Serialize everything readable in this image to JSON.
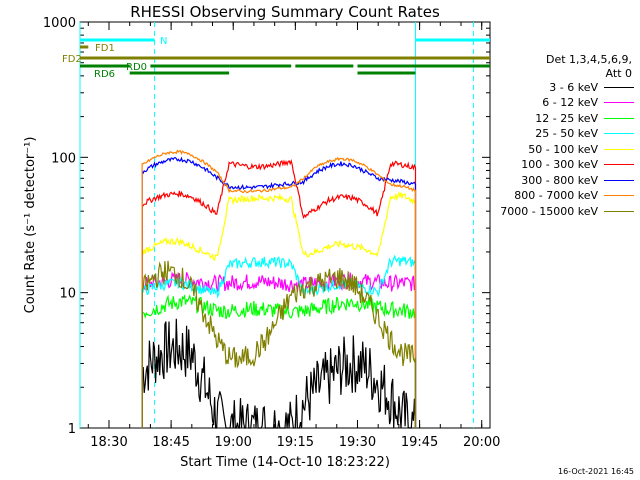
{
  "chart_data": {
    "type": "line",
    "title": "RHESSI Observing Summary Count Rates",
    "xlabel": "Start Time (14-Oct-10 18:23:22)",
    "ylabel": "Count Rate (s⁻¹ detector⁻¹)",
    "yscale": "log",
    "ylim": [
      1,
      1000
    ],
    "xlim": [
      "18:23",
      "20:02"
    ],
    "x_ticks": [
      "18:30",
      "18:45",
      "19:00",
      "19:15",
      "19:30",
      "19:45",
      "20:00"
    ],
    "y_ticks": [
      "1",
      "10",
      "100",
      "1000"
    ],
    "legend_title": [
      "Det 1,3,4,5,6,9,",
      "Att 0"
    ],
    "legend_position": "right",
    "x": [
      "18:38",
      "18:41",
      "18:44",
      "18:47",
      "18:50",
      "18:53",
      "18:56",
      "18:59",
      "19:02",
      "19:05",
      "19:08",
      "19:11",
      "19:14",
      "19:17",
      "19:20",
      "19:23",
      "19:26",
      "19:29",
      "19:32",
      "19:35",
      "19:38",
      "19:41",
      "19:44"
    ],
    "series": [
      {
        "name": "3 - 6 keV",
        "color": "#000000",
        "values": [
          2.6,
          3.3,
          3.8,
          3.9,
          3.5,
          2.1,
          1.2,
          1.0,
          1.0,
          1.0,
          1.0,
          1.0,
          1.0,
          1.5,
          1.9,
          2.3,
          2.8,
          3.0,
          2.8,
          2.2,
          1.7,
          1.2,
          1.0
        ]
      },
      {
        "name": "6 - 12 keV",
        "color": "#ff00ff",
        "values": [
          11.5,
          11.8,
          12.2,
          12.5,
          12.3,
          12.0,
          11.7,
          11.8,
          12.0,
          12.1,
          12.0,
          11.8,
          11.6,
          11.5,
          11.8,
          12.0,
          12.2,
          12.3,
          12.1,
          11.9,
          11.7,
          11.8,
          11.6
        ]
      },
      {
        "name": "12 - 25 keV",
        "color": "#00ff00",
        "values": [
          7.2,
          7.6,
          8.2,
          8.6,
          8.4,
          7.9,
          7.4,
          7.3,
          7.5,
          7.6,
          7.5,
          7.3,
          7.2,
          7.3,
          7.6,
          8.0,
          8.3,
          8.5,
          8.2,
          7.8,
          7.5,
          7.4,
          7.2
        ]
      },
      {
        "name": "25 - 50 keV",
        "color": "#00ffff",
        "values": [
          10.2,
          11.0,
          11.6,
          11.8,
          11.2,
          10.4,
          9.8,
          16.0,
          16.5,
          16.8,
          17.0,
          16.7,
          16.3,
          10.0,
          10.6,
          11.2,
          11.6,
          11.4,
          10.8,
          10.2,
          17.0,
          17.2,
          16.5
        ]
      },
      {
        "name": "50 - 100 keV",
        "color": "#ffff00",
        "values": [
          20,
          22,
          24,
          24,
          22,
          20,
          18,
          48,
          49,
          50,
          50,
          50,
          49,
          19,
          20,
          22,
          23,
          22,
          21,
          19,
          51,
          52,
          47
        ]
      },
      {
        "name": "100 - 300 keV",
        "color": "#ff0000",
        "values": [
          45,
          50,
          53,
          54,
          51,
          45,
          38,
          90,
          87,
          85,
          86,
          89,
          94,
          36,
          42,
          48,
          51,
          50,
          45,
          38,
          90,
          88,
          84
        ]
      },
      {
        "name": "300 - 800 keV",
        "color": "#0000ff",
        "values": [
          78,
          88,
          95,
          97,
          93,
          83,
          71,
          61,
          60,
          60,
          61,
          63,
          64,
          66,
          78,
          86,
          90,
          87,
          78,
          70,
          68,
          66,
          63
        ]
      },
      {
        "name": "800 - 7000 keV",
        "color": "#ff8000",
        "values": [
          88,
          100,
          108,
          110,
          104,
          92,
          78,
          57,
          56,
          56,
          57,
          59,
          60,
          70,
          85,
          93,
          98,
          95,
          86,
          74,
          63,
          61,
          57
        ]
      },
      {
        "name": "7000 - 15000 keV",
        "color": "#808000",
        "values": [
          10.5,
          13.0,
          14.5,
          13.5,
          10.5,
          7.0,
          4.5,
          3.3,
          3.2,
          3.5,
          4.5,
          6.5,
          9.5,
          11.0,
          11.5,
          12.5,
          13.0,
          11.5,
          9.0,
          6.5,
          4.5,
          3.5,
          3.3
        ]
      }
    ],
    "flags": [
      {
        "name": "N",
        "color": "#00ffff",
        "intervals": [
          [
            "18:23",
            "18:41"
          ],
          [
            "19:44",
            "20:02"
          ]
        ]
      },
      {
        "name": "FD1",
        "color": "#808000",
        "intervals": [
          [
            "18:23",
            "18:25"
          ]
        ]
      },
      {
        "name": "FD2",
        "color": "#808000",
        "intervals": [
          [
            "18:23",
            "20:02"
          ]
        ]
      },
      {
        "name": "RD0",
        "color": "#008000",
        "intervals": [
          [
            "18:23",
            "18:35"
          ],
          [
            "18:40",
            "18:59"
          ],
          [
            "18:59",
            "19:14"
          ],
          [
            "19:15",
            "19:29"
          ],
          [
            "19:30",
            "20:02"
          ]
        ]
      },
      {
        "name": "RD6",
        "color": "#008000",
        "intervals": [
          [
            "18:35",
            "18:59"
          ],
          [
            "19:30",
            "19:44"
          ]
        ]
      }
    ],
    "saa_lines": [
      {
        "time": "18:23",
        "style": "solid"
      },
      {
        "time": "18:41",
        "style": "dashed"
      },
      {
        "time": "19:44",
        "style": "solid"
      },
      {
        "time": "19:58",
        "style": "dashed"
      }
    ]
  },
  "footer": {
    "timestamp": "16-Oct-2021 16:45"
  }
}
